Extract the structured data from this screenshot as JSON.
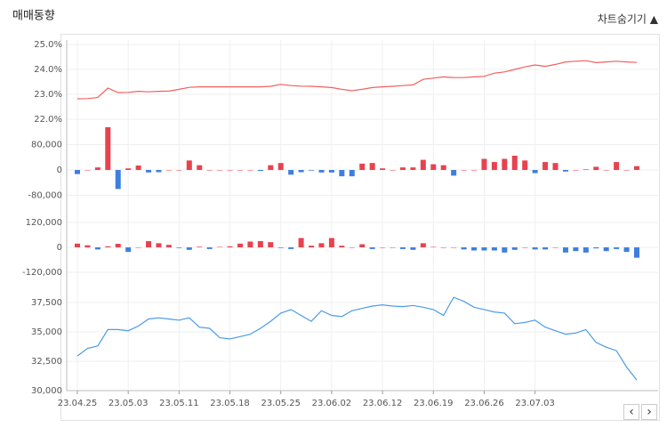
{
  "title": "매매동향",
  "toggle": "차트숨기기 ▲",
  "nav": [
    "‹",
    "›"
  ],
  "chart_data": [
    {
      "type": "line",
      "color": "#f0605e",
      "ylim": [
        21.5,
        25.0
      ],
      "yticks": [
        {
          "value": 22.0,
          "label": "22.0%"
        },
        {
          "value": 23.0,
          "label": "23.0%"
        },
        {
          "value": 24.0,
          "label": "24.0%"
        },
        {
          "value": 25.0,
          "label": "25.0%"
        }
      ],
      "values": [
        22.82,
        22.83,
        22.87,
        23.25,
        23.07,
        23.08,
        23.12,
        23.1,
        23.12,
        23.13,
        23.2,
        23.28,
        23.3,
        23.3,
        23.3,
        23.3,
        23.3,
        23.3,
        23.3,
        23.32,
        23.4,
        23.35,
        23.33,
        23.32,
        23.3,
        23.27,
        23.2,
        23.15,
        23.2,
        23.27,
        23.3,
        23.32,
        23.35,
        23.38,
        23.6,
        23.65,
        23.7,
        23.67,
        23.67,
        23.7,
        23.72,
        23.85,
        23.9,
        24.0,
        24.1,
        24.18,
        24.12,
        24.2,
        24.3,
        24.33,
        24.35,
        24.27,
        24.3,
        24.33,
        24.3,
        24.28
      ]
    },
    {
      "type": "bar",
      "colors": {
        "positive": "#e8424f",
        "negative": "#3d7fe0"
      },
      "ylim": [
        -130000,
        150000
      ],
      "yticks": [
        {
          "value": -80000,
          "label": "-80,000"
        },
        0,
        {
          "value": 80000,
          "label": "80,000"
        }
      ],
      "values": [
        -13000,
        0,
        8000,
        135000,
        -60000,
        5000,
        14000,
        -8000,
        -7000,
        0,
        0,
        30000,
        15000,
        0,
        0,
        0,
        0,
        0,
        -3000,
        15000,
        22000,
        -15000,
        -7000,
        -2000,
        -8000,
        -8000,
        -20000,
        -20000,
        20000,
        22000,
        5000,
        0,
        8000,
        8000,
        32000,
        18000,
        15000,
        -18000,
        0,
        0,
        35000,
        25000,
        35000,
        45000,
        30000,
        -10000,
        25000,
        22000,
        -5000,
        0,
        2000,
        10000,
        0,
        25000,
        0,
        12000
      ]
    },
    {
      "type": "bar",
      "colors": {
        "positive": "#e8424f",
        "negative": "#3d7fe0"
      },
      "ylim": [
        -180000,
        180000
      ],
      "yticks": [
        {
          "value": -120000,
          "label": "-120,000"
        },
        0,
        {
          "value": 120000,
          "label": "120,000"
        }
      ],
      "values": [
        18000,
        10000,
        -10000,
        5000,
        17000,
        -22000,
        0,
        30000,
        20000,
        12000,
        -3000,
        -12000,
        3000,
        -8000,
        2000,
        5000,
        18000,
        28000,
        30000,
        25000,
        -3000,
        -8000,
        45000,
        8000,
        20000,
        45000,
        8000,
        0,
        15000,
        -8000,
        0,
        -2000,
        -8000,
        -12000,
        20000,
        2000,
        0,
        0,
        -10000,
        -15000,
        -15000,
        -15000,
        -25000,
        -12000,
        0,
        -10000,
        -10000,
        0,
        -25000,
        -18000,
        -25000,
        -5000,
        -18000,
        -8000,
        -22000,
        -50000
      ]
    },
    {
      "type": "line",
      "color": "#4d9be6",
      "ylim": [
        30000,
        39000
      ],
      "yticks": [
        {
          "value": 30000,
          "label": "30,000"
        },
        {
          "value": 32500,
          "label": "32,500"
        },
        {
          "value": 35000,
          "label": "35,000"
        },
        {
          "value": 37500,
          "label": "37,500"
        }
      ],
      "categories": [
        "23.04.25",
        null,
        null,
        null,
        null,
        "23.05.03",
        null,
        null,
        null,
        null,
        "23.05.11",
        null,
        null,
        null,
        null,
        "23.05.18",
        null,
        null,
        null,
        null,
        "23.05.25",
        null,
        null,
        null,
        null,
        "23.06.02",
        null,
        null,
        null,
        null,
        "23.06.12",
        null,
        null,
        null,
        null,
        "23.06.19",
        null,
        null,
        null,
        null,
        "23.06.26",
        null,
        null,
        null,
        null,
        "23.07.03",
        null,
        null,
        null,
        null,
        null,
        null,
        null,
        null,
        null,
        null
      ],
      "values": [
        32950,
        33600,
        33800,
        35200,
        35200,
        35100,
        35500,
        36100,
        36200,
        36100,
        36000,
        36200,
        35400,
        35300,
        34500,
        34400,
        34600,
        34800,
        35300,
        35900,
        36600,
        36900,
        36400,
        35900,
        36800,
        36400,
        36300,
        36800,
        37000,
        37200,
        37300,
        37200,
        37150,
        37250,
        37100,
        36900,
        36400,
        37950,
        37600,
        37100,
        36900,
        36700,
        36600,
        35700,
        35800,
        36000,
        35400,
        35100,
        34800,
        34900,
        35200,
        34100,
        33700,
        33400,
        32000,
        30900
      ]
    }
  ]
}
